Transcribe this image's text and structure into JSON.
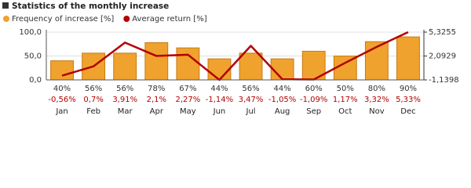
{
  "chart_data": {
    "type": "bar",
    "title": "Statistics of the monthly increase",
    "categories": [
      "Jan",
      "Feb",
      "Mar",
      "Apr",
      "May",
      "Jun",
      "Jul",
      "Aug",
      "Sep",
      "Oct",
      "Nov",
      "Dec"
    ],
    "series": [
      {
        "name": "Frequency of increase [%]",
        "color": "#f0a22e",
        "values": [
          40,
          56,
          56,
          78,
          67,
          44,
          56,
          44,
          60,
          50,
          80,
          90
        ],
        "value_labels": [
          "40%",
          "56%",
          "56%",
          "78%",
          "67%",
          "44%",
          "56%",
          "44%",
          "60%",
          "50%",
          "80%",
          "90%"
        ]
      },
      {
        "name": "Average return [%]",
        "color": "#b30000",
        "type": "line",
        "axis": "y2",
        "values": [
          -0.56,
          0.7,
          3.91,
          2.1,
          2.27,
          -1.14,
          3.47,
          -1.05,
          -1.09,
          1.17,
          3.32,
          5.33
        ],
        "value_labels": [
          "-0,56%",
          "0,7%",
          "3,91%",
          "2,1%",
          "2,27%",
          "-1,14%",
          "3,47%",
          "-1,05%",
          "-1,09%",
          "1,17%",
          "3,32%",
          "5,33%"
        ]
      }
    ],
    "ylim": [
      0,
      100
    ],
    "yticks": [
      {
        "value": 0,
        "label": "0,0"
      },
      {
        "value": 50,
        "label": "50,0"
      },
      {
        "value": 100,
        "label": "100,0"
      }
    ],
    "y2lim": [
      -1.1398,
      5.3255
    ],
    "y2ticks": [
      {
        "value": -1.1398,
        "label": "-1,1398"
      },
      {
        "value": 2.0929,
        "label": "2,0929"
      },
      {
        "value": 5.3255,
        "label": "5,3255"
      }
    ],
    "grid": true
  }
}
